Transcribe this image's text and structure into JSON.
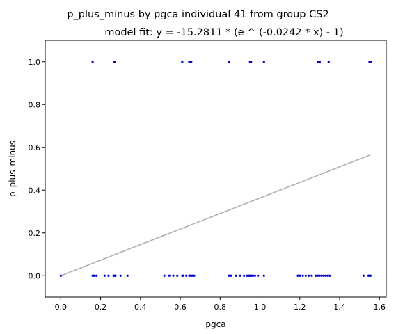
{
  "chart_data": {
    "type": "scatter",
    "title": "p_plus_minus by pgca individual 41 from group CS2",
    "subtitle": "model fit: y = -15.2811 * (e ^ (-0.0242 * x) - 1)",
    "xlabel": "pgca",
    "ylabel": "p_plus_minus",
    "xlim": [
      -0.078,
      1.634
    ],
    "ylim": [
      -0.1,
      1.1
    ],
    "xticks": [
      0.0,
      0.2,
      0.4,
      0.6,
      0.8,
      1.0,
      1.2,
      1.4,
      1.6
    ],
    "yticks": [
      0.0,
      0.2,
      0.4,
      0.6,
      0.8,
      1.0
    ],
    "xtick_labels": [
      "0.0",
      "0.2",
      "0.4",
      "0.6",
      "0.8",
      "1.0",
      "1.2",
      "1.4",
      "1.6"
    ],
    "ytick_labels": [
      "0.0",
      "0.2",
      "0.4",
      "0.6",
      "0.8",
      "1.0"
    ],
    "grid": false,
    "point_color": "#0000cc",
    "fit_color": "#b0b0b0",
    "model": {
      "a": -15.2811,
      "b": -0.0242
    },
    "points": [
      [
        0.0,
        0
      ],
      [
        0.16,
        0
      ],
      [
        0.165,
        0
      ],
      [
        0.17,
        0
      ],
      [
        0.18,
        0
      ],
      [
        0.22,
        0
      ],
      [
        0.24,
        0
      ],
      [
        0.265,
        0
      ],
      [
        0.27,
        0
      ],
      [
        0.275,
        0
      ],
      [
        0.3,
        0
      ],
      [
        0.335,
        0
      ],
      [
        0.52,
        0
      ],
      [
        0.545,
        0
      ],
      [
        0.565,
        0
      ],
      [
        0.585,
        0
      ],
      [
        0.61,
        0
      ],
      [
        0.615,
        0
      ],
      [
        0.63,
        0
      ],
      [
        0.645,
        0
      ],
      [
        0.65,
        0
      ],
      [
        0.66,
        0
      ],
      [
        0.67,
        0
      ],
      [
        0.845,
        0
      ],
      [
        0.855,
        0
      ],
      [
        0.88,
        0
      ],
      [
        0.9,
        0
      ],
      [
        0.92,
        0
      ],
      [
        0.935,
        0
      ],
      [
        0.945,
        0
      ],
      [
        0.95,
        0
      ],
      [
        0.955,
        0
      ],
      [
        0.96,
        0
      ],
      [
        0.965,
        0
      ],
      [
        0.975,
        0
      ],
      [
        0.99,
        0
      ],
      [
        1.02,
        0
      ],
      [
        1.19,
        0
      ],
      [
        1.2,
        0
      ],
      [
        1.215,
        0
      ],
      [
        1.23,
        0
      ],
      [
        1.245,
        0
      ],
      [
        1.26,
        0
      ],
      [
        1.28,
        0
      ],
      [
        1.29,
        0
      ],
      [
        1.3,
        0
      ],
      [
        1.31,
        0
      ],
      [
        1.32,
        0
      ],
      [
        1.33,
        0
      ],
      [
        1.34,
        0
      ],
      [
        1.35,
        0
      ],
      [
        1.52,
        0
      ],
      [
        1.545,
        0
      ],
      [
        1.55,
        0
      ],
      [
        1.555,
        0
      ],
      [
        0.16,
        1
      ],
      [
        0.27,
        1
      ],
      [
        0.61,
        1
      ],
      [
        0.645,
        1
      ],
      [
        0.655,
        1
      ],
      [
        0.845,
        1
      ],
      [
        0.95,
        1
      ],
      [
        0.955,
        1
      ],
      [
        1.02,
        1
      ],
      [
        1.29,
        1
      ],
      [
        1.3,
        1
      ],
      [
        1.345,
        1
      ],
      [
        1.55,
        1
      ],
      [
        1.555,
        1
      ]
    ],
    "fit_line": {
      "x": [
        0.0,
        1.555
      ],
      "y": [
        0.0,
        0.565
      ]
    }
  }
}
